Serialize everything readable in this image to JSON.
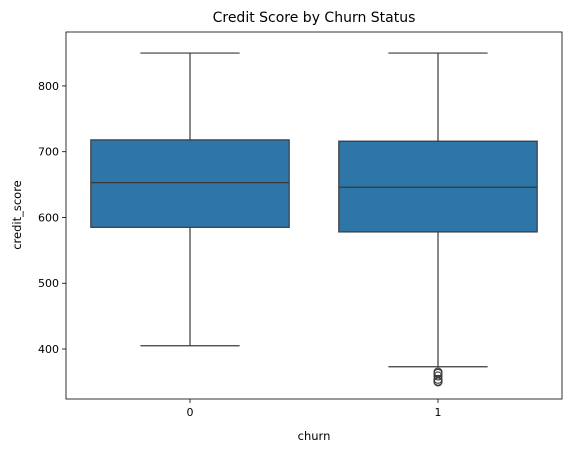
{
  "chart_data": {
    "type": "box",
    "title": "Credit Score by Churn Status",
    "xlabel": "churn",
    "ylabel": "credit_score",
    "categories": [
      "0",
      "1"
    ],
    "ylim": [
      324,
      882
    ],
    "yticks": [
      400,
      500,
      600,
      700,
      800
    ],
    "grid": false,
    "box_color": "#2e75a8",
    "line_color": "#3a3a3a",
    "boxes": [
      {
        "category": "0",
        "whisker_low": 405,
        "q1": 585,
        "median": 653,
        "q3": 718,
        "whisker_high": 850,
        "outliers": []
      },
      {
        "category": "1",
        "whisker_low": 373,
        "q1": 578,
        "median": 646,
        "q3": 716,
        "whisker_high": 850,
        "outliers": [
          350,
          351,
          354,
          359,
          363,
          365
        ]
      }
    ]
  }
}
